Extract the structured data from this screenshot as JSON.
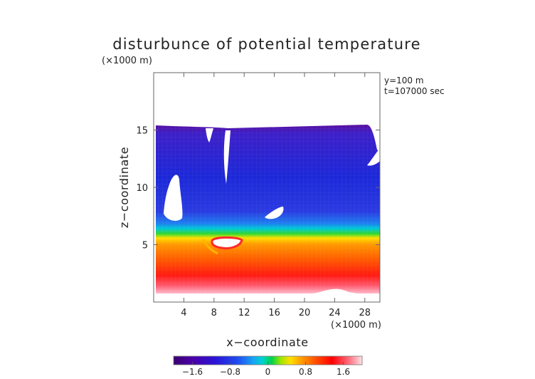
{
  "chart_data": {
    "type": "heatmap",
    "title": "disturbunce of potential temperature",
    "unit_label": "(×1000 m)",
    "xlabel": "x−coordinate",
    "ylabel": "z−coordinate",
    "x_unit_label": "(×1000 m)",
    "annotations": [
      "y=100  m",
      "t=107000 sec"
    ],
    "xlim": [
      0,
      30
    ],
    "ylim": [
      0,
      20
    ],
    "x_ticks": [
      4,
      8,
      12,
      16,
      20,
      24,
      28
    ],
    "y_ticks": [
      5,
      10,
      15
    ],
    "colorbar": {
      "range": [
        -2.0,
        2.0
      ],
      "tick_values": [
        -1.6,
        -0.8,
        0,
        0.8,
        1.6
      ],
      "tick_labels": [
        "−1.6",
        "−0.8",
        "0",
        "0.8",
        "1.6"
      ],
      "colors": [
        "#3a0070",
        "#4b00a8",
        "#2a14d6",
        "#1e4cf0",
        "#1aa0f5",
        "#00d2d2",
        "#00d24a",
        "#a0e600",
        "#ffe000",
        "#ff9a00",
        "#ff4a00",
        "#ff0000",
        "#ff6070",
        "#ffb0b8",
        "#ffe0e4"
      ]
    },
    "field_description_values": {
      "top_of_data_z": 15.5,
      "bottom_of_data_z": 0.6,
      "layers": [
        {
          "z": [
            0.6,
            1.2
          ],
          "value": 2.0
        },
        {
          "z": [
            1.2,
            3.0
          ],
          "value": 1.6
        },
        {
          "z": [
            3.0,
            5.0
          ],
          "value": 0.9
        },
        {
          "z": [
            5.0,
            5.8
          ],
          "value": 0.0
        },
        {
          "z": [
            5.8,
            7.5
          ],
          "value": -0.9
        },
        {
          "z": [
            7.5,
            15.5
          ],
          "value": -1.5
        }
      ]
    }
  }
}
